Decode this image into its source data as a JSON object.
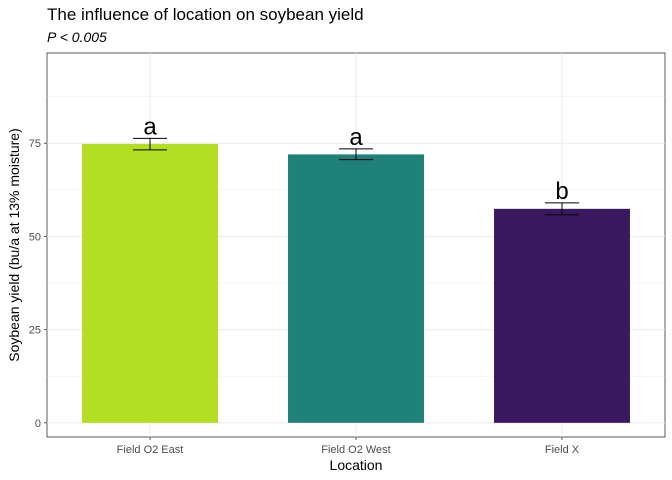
{
  "chart_data": {
    "type": "bar",
    "title": "The influence of location on soybean yield",
    "subtitle": "P < 0.005",
    "xlabel": "Location",
    "ylabel": "Soybean yield (bu/a at 13% moisture)",
    "categories": [
      "Field O2 East",
      "Field O2 West",
      "Field X"
    ],
    "values": [
      74.8,
      72.0,
      57.4
    ],
    "error": [
      [
        73.2,
        76.3
      ],
      [
        70.6,
        73.5
      ],
      [
        55.8,
        59.0
      ]
    ],
    "significance_labels": [
      "a",
      "a",
      "b"
    ],
    "colors": [
      "#b2df22",
      "#20817a",
      "#3a1961"
    ],
    "ylim": [
      -3.8,
      99.2
    ],
    "yticks": [
      0,
      25,
      50,
      75
    ],
    "grid": true,
    "legend": "none"
  }
}
